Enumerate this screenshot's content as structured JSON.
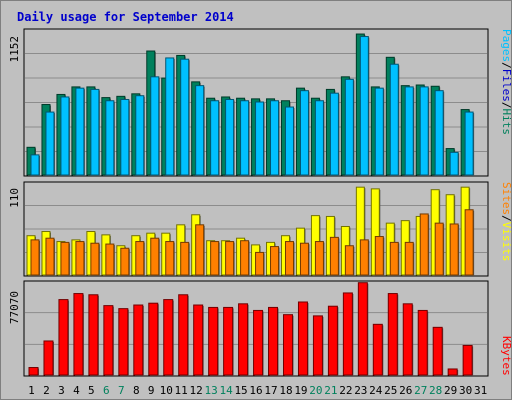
{
  "window": {
    "title": "Daily usage for September 2014"
  },
  "chart_data": [
    {
      "type": "bar",
      "panel": "pages-files-hits",
      "title": "Daily usage for September 2014",
      "categories": [
        "1",
        "2",
        "3",
        "4",
        "5",
        "6",
        "7",
        "8",
        "9",
        "10",
        "11",
        "12",
        "13",
        "14",
        "15",
        "16",
        "17",
        "18",
        "19",
        "20",
        "21",
        "22",
        "23",
        "24",
        "25",
        "26",
        "27",
        "28",
        "29",
        "30",
        "31"
      ],
      "weekend_days": [
        6,
        7,
        13,
        14,
        20,
        21,
        27,
        28
      ],
      "ymax_label": "1152",
      "ylim": [
        0,
        1152
      ],
      "legend": [
        "Pages",
        "Files",
        "Hits"
      ],
      "legend_colors": {
        "Pages": "#00c0ff",
        "Files": "#0000cc",
        "Hits": "#00805c"
      },
      "series": [
        {
          "name": "Hits",
          "color": "#00805c",
          "values": [
            220,
            560,
            640,
            700,
            700,
            615,
            625,
            645,
            985,
            770,
            950,
            740,
            610,
            620,
            610,
            605,
            605,
            590,
            690,
            610,
            680,
            780,
            1120,
            700,
            935,
            710,
            715,
            705,
            210,
            520,
            0
          ]
        },
        {
          "name": "Files",
          "color": "#00c0ff",
          "values": [
            160,
            500,
            620,
            690,
            680,
            590,
            600,
            630,
            780,
            930,
            920,
            710,
            590,
            600,
            590,
            580,
            590,
            540,
            670,
            590,
            650,
            760,
            1100,
            690,
            880,
            700,
            700,
            670,
            180,
            500,
            0
          ]
        }
      ]
    },
    {
      "type": "bar",
      "panel": "sites-visits",
      "categories": [
        "1",
        "2",
        "3",
        "4",
        "5",
        "6",
        "7",
        "8",
        "9",
        "10",
        "11",
        "12",
        "13",
        "14",
        "15",
        "16",
        "17",
        "18",
        "19",
        "20",
        "21",
        "22",
        "23",
        "24",
        "25",
        "26",
        "27",
        "28",
        "29",
        "30",
        "31"
      ],
      "ymax_label": "110",
      "ylim": [
        0,
        110
      ],
      "legend": [
        "Sites",
        "Visits"
      ],
      "legend_colors": {
        "Sites": "#ff8000",
        "Visits": "#ffff00"
      },
      "series": [
        {
          "name": "Visits",
          "color": "#ffff00",
          "values": [
            47,
            52,
            40,
            42,
            52,
            48,
            35,
            47,
            50,
            50,
            60,
            72,
            41,
            41,
            44,
            36,
            39,
            47,
            56,
            71,
            70,
            58,
            105,
            103,
            62,
            65,
            70,
            102,
            96,
            105,
            0
          ]
        },
        {
          "name": "Sites",
          "color": "#ff8000",
          "values": [
            42,
            44,
            39,
            40,
            38,
            37,
            32,
            40,
            44,
            40,
            39,
            60,
            40,
            40,
            41,
            27,
            34,
            40,
            38,
            40,
            45,
            35,
            42,
            46,
            39,
            39,
            73,
            62,
            61,
            78,
            0
          ]
        }
      ]
    },
    {
      "type": "bar",
      "panel": "kbytes",
      "categories": [
        "1",
        "2",
        "3",
        "4",
        "5",
        "6",
        "7",
        "8",
        "9",
        "10",
        "11",
        "12",
        "13",
        "14",
        "15",
        "16",
        "17",
        "18",
        "19",
        "20",
        "21",
        "22",
        "23",
        "24",
        "25",
        "26",
        "27",
        "28",
        "29",
        "30",
        "31"
      ],
      "ymax_label": "77070",
      "ylim": [
        0,
        77070
      ],
      "legend": [
        "KBytes"
      ],
      "legend_colors": {
        "KBytes": "#ff0000"
      },
      "series": [
        {
          "name": "KBytes",
          "color": "#ff0000",
          "values": [
            6200,
            28200,
            62500,
            67500,
            66500,
            57500,
            55000,
            58000,
            59500,
            62500,
            66500,
            58000,
            56000,
            56000,
            59000,
            53500,
            56000,
            50000,
            60500,
            49000,
            57000,
            68000,
            76500,
            42000,
            67500,
            59000,
            53500,
            39500,
            5000,
            24500,
            0
          ]
        }
      ]
    }
  ]
}
